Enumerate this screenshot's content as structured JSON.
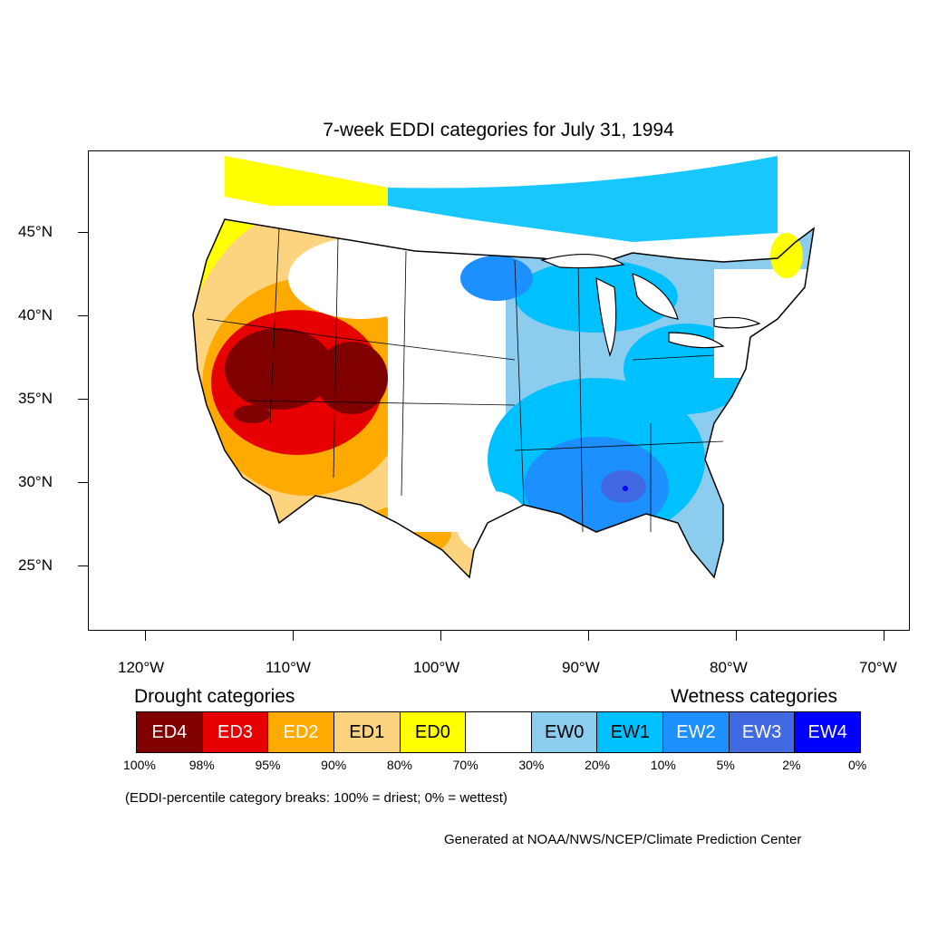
{
  "title": "7-week EDDI categories for July 31, 1994",
  "lat_labels": [
    "45°N",
    "40°N",
    "35°N",
    "30°N",
    "25°N"
  ],
  "lon_labels": [
    "120°W",
    "110°W",
    "100°W",
    "90°W",
    "80°W",
    "70°W"
  ],
  "legend": {
    "drought_heading": "Drought categories",
    "wetness_heading": "Wetness categories",
    "categories": [
      {
        "label": "ED4",
        "color": "#800000",
        "text_color": "#ffffff"
      },
      {
        "label": "ED3",
        "color": "#e60000",
        "text_color": "#ffffff"
      },
      {
        "label": "ED2",
        "color": "#ffaa00",
        "text_color": "#ffffff"
      },
      {
        "label": "ED1",
        "color": "#fcd37f",
        "text_color": "#000000"
      },
      {
        "label": "ED0",
        "color": "#ffff00",
        "text_color": "#000000"
      },
      {
        "label": "",
        "color": "#ffffff",
        "text_color": "#000000"
      },
      {
        "label": "EW0",
        "color": "#8ccdef",
        "text_color": "#000000"
      },
      {
        "label": "EW1",
        "color": "#00c1ff",
        "text_color": "#000000"
      },
      {
        "label": "EW2",
        "color": "#1d90ff",
        "text_color": "#ffffff"
      },
      {
        "label": "EW3",
        "color": "#4169e1",
        "text_color": "#ffffff"
      },
      {
        "label": "EW4",
        "color": "#0000ff",
        "text_color": "#ffffff"
      }
    ],
    "breaks": [
      "100%",
      "98%",
      "95%",
      "90%",
      "80%",
      "70%",
      "30%",
      "20%",
      "10%",
      "5%",
      "2%",
      "0%"
    ]
  },
  "note": "(EDDI-percentile category breaks: 100% = driest; 0% = wettest)",
  "credit": "Generated at NOAA/NWS/NCEP/Climate Prediction Center"
}
